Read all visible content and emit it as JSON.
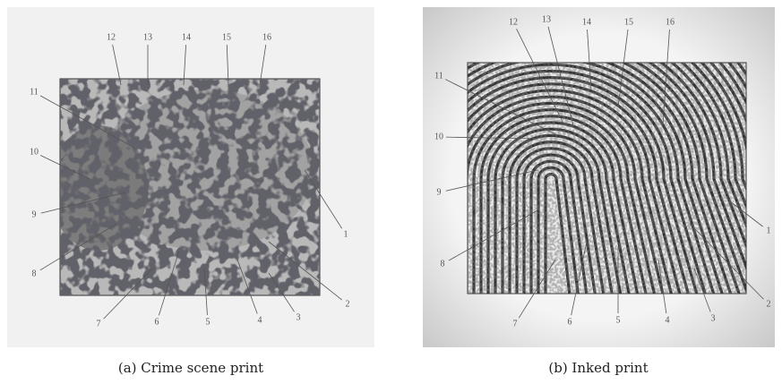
{
  "panels": [
    {
      "caption": "(a) Crime scene print",
      "labels": [
        "1",
        "2",
        "3",
        "4",
        "5",
        "6",
        "7",
        "8",
        "9",
        "10",
        "11",
        "12",
        "13",
        "14",
        "15",
        "16"
      ]
    },
    {
      "caption": "(b) Inked print",
      "labels": [
        "1",
        "2",
        "3",
        "4",
        "5",
        "6",
        "7",
        "8",
        "9",
        "10",
        "11",
        "12",
        "13",
        "14",
        "15",
        "16"
      ]
    }
  ]
}
